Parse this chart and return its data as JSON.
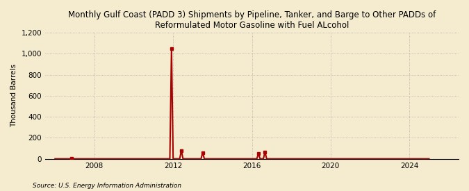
{
  "title": "Monthly Gulf Coast (PADD 3) Shipments by Pipeline, Tanker, and Barge to Other PADDs of\nReformulated Motor Gasoline with Fuel ALcohol",
  "ylabel": "Thousand Barrels",
  "source": "Source: U.S. Energy Information Administration",
  "background_color": "#f5ecd0",
  "line_color": "#aa0000",
  "line_width": 1.5,
  "marker": "s",
  "marker_size": 2.5,
  "xlim_start": 2005.5,
  "xlim_end": 2026.5,
  "ylim": [
    0,
    1200
  ],
  "yticks": [
    0,
    200,
    400,
    600,
    800,
    1000,
    1200
  ],
  "xticks": [
    2008,
    2012,
    2016,
    2020,
    2024
  ],
  "data_x": [
    2006.0,
    2006.083,
    2006.167,
    2006.25,
    2006.333,
    2006.417,
    2006.5,
    2006.583,
    2006.667,
    2006.75,
    2006.833,
    2006.917,
    2007.0,
    2007.083,
    2007.167,
    2007.25,
    2007.333,
    2007.417,
    2007.5,
    2007.583,
    2007.667,
    2007.75,
    2007.833,
    2007.917,
    2008.0,
    2008.083,
    2008.167,
    2008.25,
    2008.333,
    2008.417,
    2008.5,
    2008.583,
    2008.667,
    2008.75,
    2008.833,
    2008.917,
    2009.0,
    2009.083,
    2009.167,
    2009.25,
    2009.333,
    2009.417,
    2009.5,
    2009.583,
    2009.667,
    2009.75,
    2009.833,
    2009.917,
    2010.0,
    2010.083,
    2010.167,
    2010.25,
    2010.333,
    2010.417,
    2010.5,
    2010.583,
    2010.667,
    2010.75,
    2010.833,
    2010.917,
    2011.0,
    2011.083,
    2011.167,
    2011.25,
    2011.333,
    2011.417,
    2011.5,
    2011.583,
    2011.667,
    2011.75,
    2011.833,
    2011.917,
    2012.0,
    2012.083,
    2012.167,
    2012.25,
    2012.333,
    2012.417,
    2012.5,
    2012.583,
    2012.667,
    2012.75,
    2012.833,
    2012.917,
    2013.0,
    2013.083,
    2013.167,
    2013.25,
    2013.333,
    2013.417,
    2013.5,
    2013.583,
    2013.667,
    2013.75,
    2013.833,
    2013.917,
    2014.0,
    2014.083,
    2014.167,
    2014.25,
    2014.333,
    2014.417,
    2014.5,
    2014.583,
    2014.667,
    2014.75,
    2014.833,
    2014.917,
    2015.0,
    2015.083,
    2015.167,
    2015.25,
    2015.333,
    2015.417,
    2015.5,
    2015.583,
    2015.667,
    2015.75,
    2015.833,
    2015.917,
    2016.0,
    2016.083,
    2016.167,
    2016.25,
    2016.333,
    2016.417,
    2016.5,
    2016.583,
    2016.667,
    2016.75,
    2016.833,
    2016.917,
    2017.0,
    2017.083,
    2017.167,
    2017.25,
    2017.333,
    2017.417,
    2017.5,
    2017.583,
    2017.667,
    2017.75,
    2017.833,
    2017.917,
    2018.0,
    2018.083,
    2018.167,
    2018.25,
    2018.333,
    2018.417,
    2018.5,
    2018.583,
    2018.667,
    2018.75,
    2018.833,
    2018.917,
    2019.0,
    2019.083,
    2019.167,
    2019.25,
    2019.333,
    2019.417,
    2019.5,
    2019.583,
    2019.667,
    2019.75,
    2019.833,
    2019.917,
    2020.0,
    2020.083,
    2020.167,
    2020.25,
    2020.333,
    2020.417,
    2020.5,
    2020.583,
    2020.667,
    2020.75,
    2020.833,
    2020.917,
    2021.0,
    2021.083,
    2021.167,
    2021.25,
    2021.333,
    2021.417,
    2021.5,
    2021.583,
    2021.667,
    2021.75,
    2021.833,
    2021.917,
    2022.0,
    2022.083,
    2022.167,
    2022.25,
    2022.333,
    2022.417,
    2022.5,
    2022.583,
    2022.667,
    2022.75,
    2022.833,
    2022.917,
    2023.0,
    2023.083,
    2023.167,
    2023.25,
    2023.333,
    2023.417,
    2023.5,
    2023.583,
    2023.667,
    2023.75,
    2023.833,
    2023.917,
    2024.0,
    2024.083,
    2024.167,
    2024.25,
    2024.333,
    2024.417,
    2024.5,
    2024.583,
    2024.667,
    2024.75,
    2024.833,
    2024.917,
    2025.0
  ],
  "data_y": [
    0,
    0,
    0,
    0,
    0,
    0,
    0,
    0,
    0,
    0,
    5,
    0,
    0,
    0,
    0,
    0,
    0,
    0,
    0,
    0,
    0,
    0,
    0,
    0,
    0,
    0,
    0,
    0,
    0,
    0,
    0,
    0,
    0,
    0,
    0,
    0,
    0,
    0,
    0,
    0,
    0,
    0,
    0,
    0,
    0,
    0,
    0,
    0,
    0,
    0,
    0,
    0,
    0,
    0,
    0,
    0,
    0,
    0,
    0,
    0,
    0,
    0,
    0,
    0,
    0,
    0,
    0,
    0,
    0,
    0,
    0,
    1050,
    0,
    0,
    0,
    0,
    0,
    80,
    0,
    0,
    0,
    0,
    0,
    0,
    0,
    0,
    0,
    0,
    0,
    0,
    60,
    0,
    0,
    0,
    0,
    0,
    0,
    0,
    0,
    0,
    0,
    0,
    0,
    0,
    0,
    0,
    0,
    0,
    0,
    0,
    0,
    0,
    0,
    0,
    0,
    0,
    0,
    0,
    0,
    0,
    0,
    0,
    0,
    0,
    50,
    0,
    0,
    0,
    65,
    0,
    0,
    0,
    0,
    0,
    0,
    0,
    0,
    0,
    0,
    0,
    0,
    0,
    0,
    0,
    0,
    0,
    0,
    0,
    0,
    0,
    0,
    0,
    0,
    0,
    0,
    0,
    0,
    0,
    0,
    0,
    0,
    0,
    0,
    0,
    0,
    0,
    0,
    0,
    0,
    0,
    0,
    0,
    0,
    0,
    0,
    0,
    0,
    0,
    0,
    0,
    0,
    0,
    0,
    0,
    0,
    0,
    0,
    0,
    0,
    0,
    0,
    0,
    0,
    0,
    0,
    0,
    0,
    0,
    0,
    0,
    0,
    0,
    0,
    0,
    0,
    0,
    0,
    0,
    0,
    0,
    0,
    0,
    0,
    0,
    0,
    0,
    0,
    0,
    0,
    0,
    0,
    0,
    0,
    0,
    0,
    0,
    0,
    0,
    0
  ]
}
